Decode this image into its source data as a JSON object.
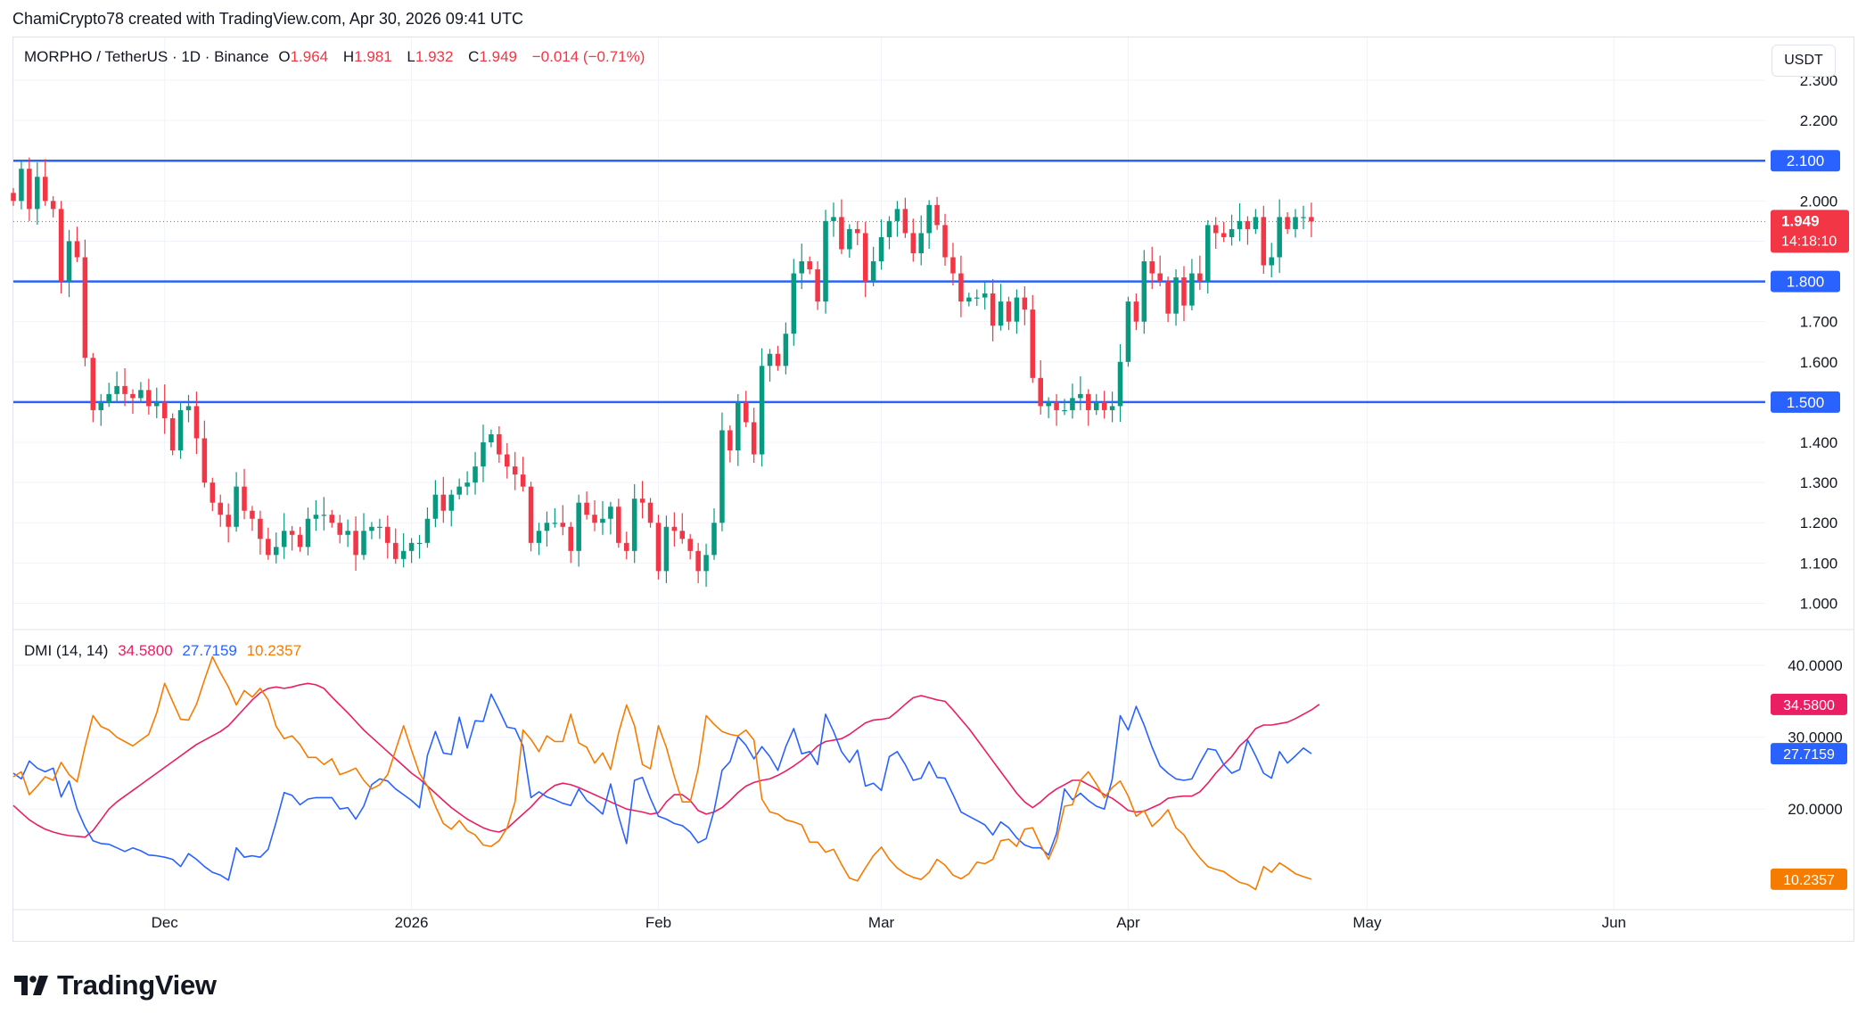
{
  "header": {
    "credit": "ChamiCrypto78 created with TradingView.com, Apr 30, 2026 09:41 UTC"
  },
  "legend": {
    "symbol": "MORPHO / TetherUS · 1D · Binance",
    "open_label": "O",
    "open": "1.964",
    "high_label": "H",
    "high": "1.981",
    "low_label": "L",
    "low": "1.932",
    "close_label": "C",
    "close": "1.949",
    "change": "−0.014 (−0.71%)"
  },
  "dmi_legend": {
    "name": "DMI (14, 14)",
    "adx": "34.5800",
    "plus_di": "27.7159",
    "minus_di": "10.2357"
  },
  "currency_button": "USDT",
  "brand": "TradingView",
  "colors": {
    "up": "#089981",
    "down": "#f23645",
    "level_line": "#2962ff",
    "adx": "#e91e63",
    "plus_di": "#2962ff",
    "minus_di": "#f57c00",
    "grid": "#f0f3fa"
  },
  "chart_data": [
    {
      "type": "candlestick",
      "title": "MORPHO / TetherUS · 1D · Binance",
      "x_tick_labels": [
        "Dec",
        "2026",
        "Feb",
        "Mar",
        "Apr",
        "May",
        "Jun"
      ],
      "x_tick_dates": [
        "2025-12-01",
        "2026-01-01",
        "2026-02-01",
        "2026-03-01",
        "2026-04-01",
        "2026-05-01",
        "2026-06-01"
      ],
      "x_range": [
        "2025-11-12",
        "2026-06-20"
      ],
      "y_ticks": [
        "1.000",
        "1.100",
        "1.200",
        "1.300",
        "1.400",
        "1.500",
        "1.600",
        "1.700",
        "1.800",
        "1.900",
        "2.000",
        "2.100",
        "2.200",
        "2.300"
      ],
      "ylim": [
        0.97,
        2.3
      ],
      "last_price": "1.949",
      "countdown": "14:18:10",
      "horizontal_lines": [
        {
          "value": 2.1,
          "label": "2.100"
        },
        {
          "value": 1.8,
          "label": "1.800"
        },
        {
          "value": 1.5,
          "label": "1.500"
        }
      ],
      "start_date": "2025-11-12",
      "close": [
        2.0,
        2.08,
        1.98,
        2.06,
        2.0,
        1.98,
        1.8,
        1.9,
        1.86,
        1.61,
        1.48,
        1.5,
        1.52,
        1.54,
        1.52,
        1.51,
        1.53,
        1.49,
        1.5,
        1.46,
        1.38,
        1.48,
        1.49,
        1.41,
        1.3,
        1.25,
        1.22,
        1.19,
        1.29,
        1.23,
        1.21,
        1.16,
        1.12,
        1.14,
        1.18,
        1.17,
        1.14,
        1.21,
        1.22,
        1.22,
        1.2,
        1.17,
        1.18,
        1.12,
        1.18,
        1.19,
        1.19,
        1.15,
        1.11,
        1.13,
        1.15,
        1.15,
        1.21,
        1.27,
        1.23,
        1.27,
        1.29,
        1.3,
        1.34,
        1.4,
        1.42,
        1.37,
        1.34,
        1.32,
        1.29,
        1.15,
        1.18,
        1.2,
        1.2,
        1.19,
        1.13,
        1.25,
        1.22,
        1.2,
        1.21,
        1.24,
        1.15,
        1.13,
        1.26,
        1.25,
        1.2,
        1.08,
        1.19,
        1.18,
        1.16,
        1.13,
        1.08,
        1.12,
        1.2,
        1.43,
        1.38,
        1.5,
        1.45,
        1.37,
        1.59,
        1.62,
        1.59,
        1.67,
        1.82,
        1.85,
        1.83,
        1.75,
        1.95,
        1.96,
        1.88,
        1.93,
        1.92,
        1.8,
        1.85,
        1.91,
        1.95,
        1.98,
        1.92,
        1.87,
        1.92,
        1.99,
        1.94,
        1.86,
        1.82,
        1.75,
        1.76,
        1.76,
        1.77,
        1.69,
        1.75,
        1.7,
        1.76,
        1.73,
        1.56,
        1.49,
        1.5,
        1.48,
        1.48,
        1.51,
        1.52,
        1.48,
        1.5,
        1.48,
        1.49,
        1.6,
        1.75,
        1.7,
        1.85,
        1.82,
        1.8,
        1.72,
        1.81,
        1.74,
        1.82,
        1.8,
        1.94,
        1.92,
        1.91,
        1.93,
        1.95,
        1.93,
        1.96,
        1.84,
        1.86,
        1.96,
        1.93,
        1.96,
        1.96,
        1.949
      ],
      "open_high_low": "open = previous close; high/low extend slightly beyond body"
    },
    {
      "type": "line",
      "title": "DMI (14, 14)",
      "y_ticks": [
        "20.0000",
        "30.0000",
        "40.0000"
      ],
      "ylim": [
        6,
        43
      ],
      "series": [
        {
          "name": "ADX",
          "color": "#e91e63",
          "last_label": "34.5800",
          "values": [
            20.5,
            19.5,
            18.5,
            17.8,
            17.2,
            16.8,
            16.5,
            16.3,
            16.2,
            16.1,
            17.0,
            18.5,
            20.0,
            21.0,
            21.8,
            22.6,
            23.4,
            24.2,
            25.0,
            25.8,
            26.6,
            27.4,
            28.2,
            29.0,
            29.6,
            30.2,
            30.8,
            31.6,
            32.8,
            34.0,
            35.2,
            36.2,
            36.8,
            37.0,
            36.8,
            37.0,
            37.3,
            37.5,
            37.3,
            36.8,
            35.6,
            34.5,
            33.4,
            32.2,
            31.0,
            30.0,
            29.0,
            28.0,
            27.0,
            26.0,
            25.0,
            24.2,
            23.2,
            22.2,
            21.2,
            20.2,
            19.4,
            18.6,
            18.0,
            17.4,
            17.0,
            16.8,
            17.3,
            18.3,
            19.3,
            20.3,
            21.5,
            22.5,
            23.3,
            23.6,
            23.4,
            23.0,
            22.5,
            22.0,
            21.5,
            21.0,
            20.5,
            20.0,
            19.8,
            19.6,
            19.3,
            19.5,
            21.0,
            22.0,
            22.0,
            21.2,
            19.8,
            19.3,
            19.6,
            20.2,
            21.2,
            22.3,
            23.2,
            23.7,
            24.0,
            24.2,
            24.7,
            25.3,
            26.0,
            26.8,
            27.7,
            28.8,
            29.4,
            29.6,
            29.8,
            30.4,
            31.2,
            32.0,
            32.4,
            32.5,
            32.7,
            33.6,
            34.6,
            35.5,
            35.8,
            35.5,
            35.2,
            35.0,
            33.8,
            32.5,
            31.2,
            29.7,
            28.2,
            26.7,
            25.2,
            23.7,
            22.2,
            21.0,
            20.2,
            21.0,
            22.0,
            22.8,
            23.4,
            24.0,
            24.0,
            23.4,
            22.8,
            22.0,
            21.5,
            20.7,
            19.8,
            19.6,
            19.7,
            20.2,
            20.7,
            21.5,
            21.7,
            21.8,
            21.8,
            22.4,
            23.6,
            25.0,
            26.2,
            27.3,
            28.8,
            29.8,
            31.2,
            31.7,
            31.7,
            31.9,
            32.1,
            32.6,
            33.2,
            33.8,
            34.58
          ]
        },
        {
          "name": "+DI",
          "color": "#2962ff",
          "last_label": "27.7159",
          "values": [
            25.0,
            24.2,
            26.7,
            25.7,
            25.2,
            25.7,
            21.7,
            23.9,
            20.0,
            17.5,
            15.6,
            15.2,
            15.1,
            14.6,
            14.1,
            14.6,
            14.2,
            13.6,
            13.5,
            13.3,
            13.0,
            12.0,
            13.8,
            13.0,
            12.0,
            11.2,
            10.8,
            10.1,
            14.6,
            13.3,
            13.5,
            13.3,
            14.4,
            18.2,
            22.3,
            21.9,
            20.6,
            21.4,
            21.6,
            21.6,
            21.6,
            20.0,
            20.2,
            18.6,
            20.4,
            23.4,
            24.2,
            23.9,
            22.8,
            22.0,
            21.2,
            20.2,
            27.5,
            30.8,
            27.8,
            27.6,
            32.8,
            28.5,
            32.3,
            32.2,
            36.0,
            33.8,
            31.4,
            31.2,
            28.8,
            21.6,
            22.4,
            21.7,
            21.3,
            20.8,
            20.5,
            22.8,
            21.2,
            20.3,
            19.3,
            23.5,
            19.0,
            15.2,
            24.0,
            24.4,
            21.5,
            19.0,
            18.6,
            18.0,
            17.7,
            16.8,
            15.3,
            15.9,
            19.8,
            25.4,
            26.6,
            30.1,
            28.9,
            27.0,
            28.7,
            27.3,
            25.4,
            28.7,
            31.2,
            27.7,
            28.0,
            26.2,
            33.2,
            30.8,
            28.0,
            26.5,
            28.2,
            23.2,
            23.6,
            22.6,
            27.3,
            28.0,
            26.2,
            24.0,
            24.3,
            26.6,
            24.4,
            24.3,
            22.0,
            19.6,
            19.0,
            18.4,
            17.8,
            16.4,
            18.2,
            17.4,
            16.0,
            15.0,
            14.6,
            14.6,
            13.6,
            16.6,
            22.8,
            21.3,
            22.2,
            21.2,
            20.4,
            20.0,
            24.2,
            33.0,
            31.0,
            34.3,
            31.7,
            28.6,
            26.0,
            25.0,
            24.2,
            24.0,
            24.2,
            26.4,
            28.4,
            28.2,
            26.2,
            25.0,
            25.5,
            29.6,
            27.4,
            25.0,
            24.3,
            28.0,
            26.4,
            27.4,
            28.5,
            27.7159
          ]
        },
        {
          "name": "−DI",
          "color": "#f57c00",
          "last_label": "10.2357",
          "values": [
            24.5,
            25.2,
            22.0,
            23.2,
            24.5,
            24.0,
            26.5,
            24.8,
            23.8,
            28.7,
            33.0,
            31.5,
            31.0,
            30.0,
            29.4,
            28.8,
            29.6,
            30.4,
            33.4,
            37.5,
            35.0,
            32.5,
            32.4,
            34.6,
            38.0,
            41.2,
            39.0,
            37.0,
            34.5,
            36.5,
            35.6,
            36.8,
            35.2,
            31.5,
            29.8,
            30.2,
            29.0,
            27.2,
            27.2,
            26.2,
            27.0,
            24.8,
            25.2,
            25.7,
            24.0,
            22.8,
            23.4,
            24.8,
            28.2,
            31.6,
            28.2,
            25.0,
            23.2,
            20.4,
            18.0,
            17.2,
            18.4,
            17.0,
            16.4,
            15.0,
            14.8,
            15.6,
            17.4,
            21.0,
            31.0,
            29.7,
            28.0,
            30.2,
            29.4,
            29.4,
            33.2,
            29.2,
            28.6,
            26.4,
            27.8,
            25.5,
            30.6,
            34.5,
            31.6,
            26.2,
            25.6,
            31.6,
            28.6,
            24.6,
            21.0,
            21.0,
            25.6,
            33.0,
            31.8,
            30.8,
            30.4,
            30.2,
            31.0,
            29.6,
            21.4,
            19.6,
            19.3,
            18.5,
            18.2,
            17.8,
            15.4,
            15.4,
            14.0,
            14.4,
            12.3,
            10.4,
            10.0,
            11.8,
            13.5,
            14.7,
            13.0,
            11.8,
            11.0,
            10.5,
            10.2,
            11.2,
            13.0,
            12.2,
            10.8,
            10.3,
            11.0,
            12.6,
            12.4,
            13.0,
            15.6,
            15.8,
            14.8,
            17.2,
            17.4,
            15.0,
            13.0,
            15.6,
            20.4,
            20.6,
            24.0,
            25.2,
            23.5,
            21.6,
            23.0,
            23.9,
            21.8,
            19.0,
            19.8,
            17.6,
            18.6,
            19.9,
            17.4,
            16.4,
            14.6,
            13.2,
            12.0,
            11.6,
            11.3,
            10.5,
            9.8,
            9.5,
            8.8,
            12.0,
            11.2,
            12.5,
            11.8,
            11.0,
            10.6,
            10.2357
          ]
        }
      ]
    }
  ]
}
